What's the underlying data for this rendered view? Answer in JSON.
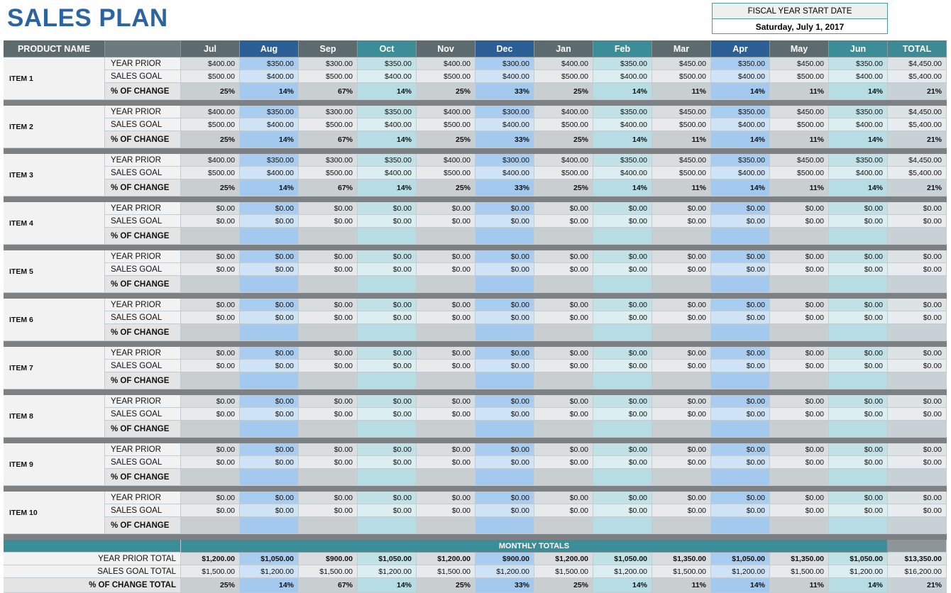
{
  "header": {
    "title": "SALES PLAN",
    "fiscal_label": "FISCAL YEAR START DATE",
    "fiscal_date": "Saturday, July 1, 2017"
  },
  "table": {
    "columns": [
      "PRODUCT NAME",
      "Jul",
      "Aug",
      "Sep",
      "Oct",
      "Nov",
      "Dec",
      "Jan",
      "Feb",
      "Mar",
      "Apr",
      "May",
      "Jun",
      "TOTAL"
    ],
    "row_labels": [
      "YEAR PRIOR",
      "SALES GOAL",
      "% OF CHANGE"
    ],
    "items": [
      {
        "name": "ITEM 1",
        "year_prior": [
          "$400.00",
          "$350.00",
          "$300.00",
          "$350.00",
          "$400.00",
          "$300.00",
          "$400.00",
          "$350.00",
          "$450.00",
          "$350.00",
          "$450.00",
          "$350.00",
          "$4,450.00"
        ],
        "sales_goal": [
          "$500.00",
          "$400.00",
          "$500.00",
          "$400.00",
          "$500.00",
          "$400.00",
          "$500.00",
          "$400.00",
          "$500.00",
          "$400.00",
          "$500.00",
          "$400.00",
          "$5,400.00"
        ],
        "pct_change": [
          "25%",
          "14%",
          "67%",
          "14%",
          "25%",
          "33%",
          "25%",
          "14%",
          "11%",
          "14%",
          "11%",
          "14%",
          "21%"
        ]
      },
      {
        "name": "ITEM 2",
        "year_prior": [
          "$400.00",
          "$350.00",
          "$300.00",
          "$350.00",
          "$400.00",
          "$300.00",
          "$400.00",
          "$350.00",
          "$450.00",
          "$350.00",
          "$450.00",
          "$350.00",
          "$4,450.00"
        ],
        "sales_goal": [
          "$500.00",
          "$400.00",
          "$500.00",
          "$400.00",
          "$500.00",
          "$400.00",
          "$500.00",
          "$400.00",
          "$500.00",
          "$400.00",
          "$500.00",
          "$400.00",
          "$5,400.00"
        ],
        "pct_change": [
          "25%",
          "14%",
          "67%",
          "14%",
          "25%",
          "33%",
          "25%",
          "14%",
          "11%",
          "14%",
          "11%",
          "14%",
          "21%"
        ]
      },
      {
        "name": "ITEM 3",
        "year_prior": [
          "$400.00",
          "$350.00",
          "$300.00",
          "$350.00",
          "$400.00",
          "$300.00",
          "$400.00",
          "$350.00",
          "$450.00",
          "$350.00",
          "$450.00",
          "$350.00",
          "$4,450.00"
        ],
        "sales_goal": [
          "$500.00",
          "$400.00",
          "$500.00",
          "$400.00",
          "$500.00",
          "$400.00",
          "$500.00",
          "$400.00",
          "$500.00",
          "$400.00",
          "$500.00",
          "$400.00",
          "$5,400.00"
        ],
        "pct_change": [
          "25%",
          "14%",
          "67%",
          "14%",
          "25%",
          "33%",
          "25%",
          "14%",
          "11%",
          "14%",
          "11%",
          "14%",
          "21%"
        ]
      },
      {
        "name": "ITEM 4",
        "year_prior": [
          "$0.00",
          "$0.00",
          "$0.00",
          "$0.00",
          "$0.00",
          "$0.00",
          "$0.00",
          "$0.00",
          "$0.00",
          "$0.00",
          "$0.00",
          "$0.00",
          "$0.00"
        ],
        "sales_goal": [
          "$0.00",
          "$0.00",
          "$0.00",
          "$0.00",
          "$0.00",
          "$0.00",
          "$0.00",
          "$0.00",
          "$0.00",
          "$0.00",
          "$0.00",
          "$0.00",
          "$0.00"
        ]
      },
      {
        "name": "ITEM 5",
        "year_prior": [
          "$0.00",
          "$0.00",
          "$0.00",
          "$0.00",
          "$0.00",
          "$0.00",
          "$0.00",
          "$0.00",
          "$0.00",
          "$0.00",
          "$0.00",
          "$0.00",
          "$0.00"
        ],
        "sales_goal": [
          "$0.00",
          "$0.00",
          "$0.00",
          "$0.00",
          "$0.00",
          "$0.00",
          "$0.00",
          "$0.00",
          "$0.00",
          "$0.00",
          "$0.00",
          "$0.00",
          "$0.00"
        ]
      },
      {
        "name": "ITEM 6",
        "year_prior": [
          "$0.00",
          "$0.00",
          "$0.00",
          "$0.00",
          "$0.00",
          "$0.00",
          "$0.00",
          "$0.00",
          "$0.00",
          "$0.00",
          "$0.00",
          "$0.00",
          "$0.00"
        ],
        "sales_goal": [
          "$0.00",
          "$0.00",
          "$0.00",
          "$0.00",
          "$0.00",
          "$0.00",
          "$0.00",
          "$0.00",
          "$0.00",
          "$0.00",
          "$0.00",
          "$0.00",
          "$0.00"
        ]
      },
      {
        "name": "ITEM 7",
        "year_prior": [
          "$0.00",
          "$0.00",
          "$0.00",
          "$0.00",
          "$0.00",
          "$0.00",
          "$0.00",
          "$0.00",
          "$0.00",
          "$0.00",
          "$0.00",
          "$0.00",
          "$0.00"
        ],
        "sales_goal": [
          "$0.00",
          "$0.00",
          "$0.00",
          "$0.00",
          "$0.00",
          "$0.00",
          "$0.00",
          "$0.00",
          "$0.00",
          "$0.00",
          "$0.00",
          "$0.00",
          "$0.00"
        ]
      },
      {
        "name": "ITEM 8",
        "year_prior": [
          "$0.00",
          "$0.00",
          "$0.00",
          "$0.00",
          "$0.00",
          "$0.00",
          "$0.00",
          "$0.00",
          "$0.00",
          "$0.00",
          "$0.00",
          "$0.00",
          "$0.00"
        ],
        "sales_goal": [
          "$0.00",
          "$0.00",
          "$0.00",
          "$0.00",
          "$0.00",
          "$0.00",
          "$0.00",
          "$0.00",
          "$0.00",
          "$0.00",
          "$0.00",
          "$0.00",
          "$0.00"
        ]
      },
      {
        "name": "ITEM 9",
        "year_prior": [
          "$0.00",
          "$0.00",
          "$0.00",
          "$0.00",
          "$0.00",
          "$0.00",
          "$0.00",
          "$0.00",
          "$0.00",
          "$0.00",
          "$0.00",
          "$0.00",
          "$0.00"
        ],
        "sales_goal": [
          "$0.00",
          "$0.00",
          "$0.00",
          "$0.00",
          "$0.00",
          "$0.00",
          "$0.00",
          "$0.00",
          "$0.00",
          "$0.00",
          "$0.00",
          "$0.00",
          "$0.00"
        ]
      },
      {
        "name": "ITEM 10",
        "year_prior": [
          "$0.00",
          "$0.00",
          "$0.00",
          "$0.00",
          "$0.00",
          "$0.00",
          "$0.00",
          "$0.00",
          "$0.00",
          "$0.00",
          "$0.00",
          "$0.00",
          "$0.00"
        ],
        "sales_goal": [
          "$0.00",
          "$0.00",
          "$0.00",
          "$0.00",
          "$0.00",
          "$0.00",
          "$0.00",
          "$0.00",
          "$0.00",
          "$0.00",
          "$0.00",
          "$0.00",
          "$0.00"
        ]
      }
    ],
    "totals": {
      "title": "MONTHLY TOTALS",
      "rows": [
        {
          "label": "YEAR PRIOR TOTAL",
          "values": [
            "$1,200.00",
            "$1,050.00",
            "$900.00",
            "$1,050.00",
            "$1,200.00",
            "$900.00",
            "$1,200.00",
            "$1,050.00",
            "$1,350.00",
            "$1,050.00",
            "$1,350.00",
            "$1,050.00",
            "$13,350.00"
          ]
        },
        {
          "label": "SALES GOAL TOTAL",
          "values": [
            "$1,500.00",
            "$1,200.00",
            "$1,500.00",
            "$1,200.00",
            "$1,500.00",
            "$1,200.00",
            "$1,500.00",
            "$1,200.00",
            "$1,500.00",
            "$1,200.00",
            "$1,500.00",
            "$1,200.00",
            "$16,200.00"
          ]
        },
        {
          "label": "% OF CHANGE TOTAL",
          "values": [
            "25%",
            "14%",
            "67%",
            "14%",
            "25%",
            "33%",
            "25%",
            "14%",
            "11%",
            "14%",
            "11%",
            "14%",
            "21%"
          ]
        }
      ]
    }
  }
}
